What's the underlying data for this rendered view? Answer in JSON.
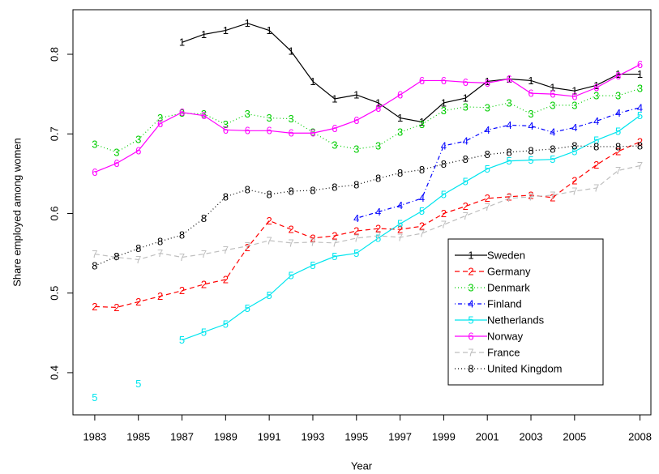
{
  "chart_data": {
    "type": "line",
    "xlabel": "Year",
    "ylabel": "Share employed among women",
    "x": [
      1983,
      1984,
      1985,
      1986,
      1987,
      1988,
      1989,
      1990,
      1991,
      1992,
      1993,
      1994,
      1995,
      1996,
      1997,
      1998,
      1999,
      2000,
      2001,
      2002,
      2003,
      2004,
      2005,
      2006,
      2007,
      2008
    ],
    "xlim": [
      1982,
      2008.5
    ],
    "xticks": [
      1983,
      1985,
      1987,
      1989,
      1991,
      1993,
      1995,
      1997,
      1999,
      2001,
      2003,
      2005,
      2008
    ],
    "ylim": [
      0.347,
      0.856
    ],
    "yticks": [
      0.4,
      0.5,
      0.6,
      0.7,
      0.8
    ],
    "legend": "bottom-right",
    "series": [
      {
        "name": "Sweden",
        "symbol": "1",
        "color": "#000000",
        "linestyle": "solid",
        "values": [
          null,
          null,
          null,
          null,
          0.815,
          0.825,
          0.83,
          0.839,
          0.83,
          0.804,
          0.766,
          0.744,
          0.749,
          0.739,
          0.72,
          0.715,
          0.739,
          0.745,
          0.766,
          0.769,
          0.767,
          0.758,
          0.754,
          0.761,
          0.775,
          0.775
        ]
      },
      {
        "name": "Germany",
        "symbol": "2",
        "color": "#ff0000",
        "linestyle": "dashed",
        "values": [
          0.483,
          0.482,
          0.489,
          0.496,
          0.503,
          0.511,
          0.517,
          0.557,
          0.591,
          0.58,
          0.569,
          0.572,
          0.578,
          0.581,
          0.58,
          0.584,
          0.6,
          0.609,
          0.619,
          0.621,
          0.623,
          0.62,
          0.641,
          0.661,
          0.678,
          0.69
        ]
      },
      {
        "name": "Denmark",
        "symbol": "3",
        "color": "#00cd00",
        "linestyle": "dotted",
        "values": [
          0.687,
          0.677,
          0.693,
          0.72,
          0.726,
          0.725,
          0.712,
          0.725,
          0.72,
          0.719,
          0.702,
          0.686,
          0.681,
          0.685,
          0.702,
          0.712,
          0.729,
          0.734,
          0.733,
          0.739,
          0.725,
          0.736,
          0.736,
          0.748,
          0.748,
          0.757
        ]
      },
      {
        "name": "Finland",
        "symbol": "4",
        "color": "#0000ff",
        "linestyle": "dashdot",
        "values": [
          null,
          null,
          null,
          null,
          null,
          null,
          null,
          null,
          null,
          null,
          null,
          null,
          0.594,
          0.602,
          0.61,
          0.619,
          0.685,
          0.691,
          0.705,
          0.711,
          0.71,
          0.702,
          0.708,
          0.716,
          0.726,
          0.733
        ]
      },
      {
        "name": "Netherlands",
        "symbol": "5",
        "color": "#00e5ee",
        "linestyle": "solid",
        "values": [
          0.369,
          null,
          0.386,
          null,
          0.441,
          0.451,
          0.461,
          0.481,
          0.497,
          0.522,
          0.535,
          0.546,
          0.55,
          0.569,
          0.587,
          0.603,
          0.624,
          0.64,
          0.656,
          0.666,
          0.667,
          0.668,
          0.678,
          0.692,
          0.703,
          0.723
        ]
      },
      {
        "name": "Norway",
        "symbol": "6",
        "color": "#ff00ff",
        "linestyle": "solid",
        "values": [
          0.652,
          0.663,
          0.679,
          0.713,
          0.727,
          0.723,
          0.705,
          0.704,
          0.704,
          0.701,
          0.701,
          0.707,
          0.717,
          0.732,
          0.749,
          0.767,
          0.767,
          0.765,
          0.764,
          0.769,
          0.751,
          0.75,
          0.747,
          0.758,
          0.773,
          0.787
        ]
      },
      {
        "name": "France",
        "symbol": "7",
        "color": "#bebebe",
        "linestyle": "dashed",
        "values": [
          0.549,
          0.545,
          0.542,
          0.55,
          0.545,
          0.549,
          0.554,
          0.559,
          0.566,
          0.563,
          0.564,
          0.563,
          0.569,
          0.572,
          0.57,
          0.575,
          0.586,
          0.597,
          0.608,
          0.619,
          0.621,
          0.623,
          0.628,
          0.632,
          0.654,
          0.66
        ]
      },
      {
        "name": "United Kingdom",
        "symbol": "8",
        "color": "#000000",
        "linestyle": "dotted",
        "values": [
          0.534,
          0.546,
          0.556,
          0.565,
          0.573,
          0.594,
          0.621,
          0.63,
          0.624,
          0.628,
          0.629,
          0.633,
          0.636,
          0.644,
          0.651,
          0.655,
          0.662,
          0.668,
          0.674,
          0.677,
          0.679,
          0.681,
          0.685,
          0.684,
          0.684,
          0.685
        ]
      }
    ]
  }
}
